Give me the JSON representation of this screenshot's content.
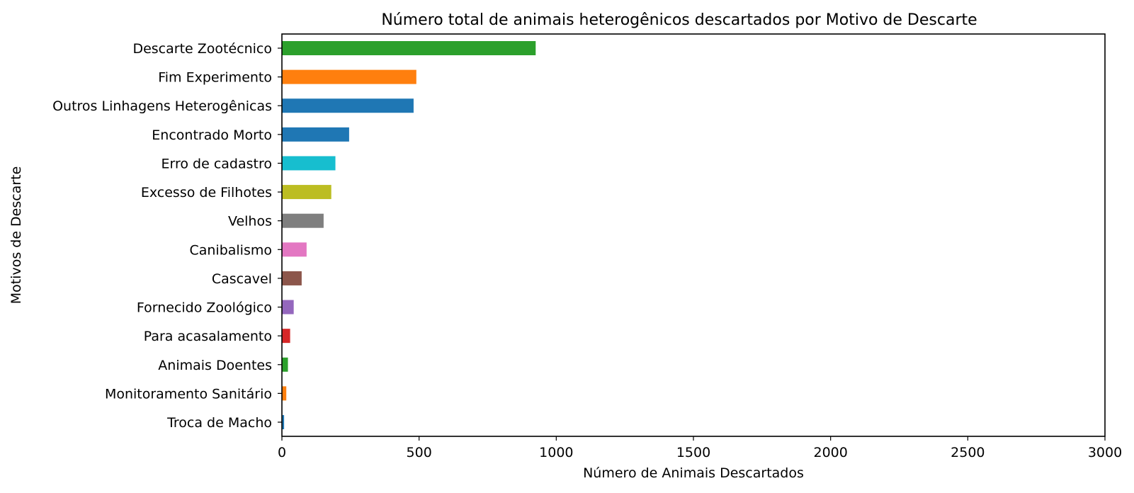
{
  "chart_data": {
    "type": "bar",
    "orientation": "horizontal",
    "title": "Número total de animais heterogênicos descartados por Motivo de Descarte",
    "xlabel": "Número de Animais Descartados",
    "ylabel": "Motivos de Descarte",
    "xlim": [
      0,
      3000
    ],
    "xticks": [
      "0",
      "500",
      "1000",
      "1500",
      "2000",
      "2500",
      "3000"
    ],
    "grid": false,
    "categories": [
      "Descarte Zootécnico",
      "Fim Experimento",
      "Outros Linhagens Heterogênicas",
      "Encontrado Morto",
      "Erro de cadastro",
      "Excesso de Filhotes",
      "Velhos",
      "Canibalismo",
      "Cascavel",
      "Fornecido Zoológico",
      "Para acasalamento",
      "Animais Doentes",
      "Monitoramento Sanitário",
      "Troca de Macho"
    ],
    "values": [
      925,
      490,
      480,
      245,
      195,
      180,
      152,
      90,
      72,
      43,
      30,
      22,
      16,
      8
    ],
    "colors": [
      "#2ca02c",
      "#ff7f0e",
      "#1f77b4",
      "#1f77b4",
      "#17becf",
      "#bcbd22",
      "#7f7f7f",
      "#e377c2",
      "#8c564b",
      "#9467bd",
      "#d62728",
      "#2ca02c",
      "#ff7f0e",
      "#1f77b4"
    ]
  }
}
